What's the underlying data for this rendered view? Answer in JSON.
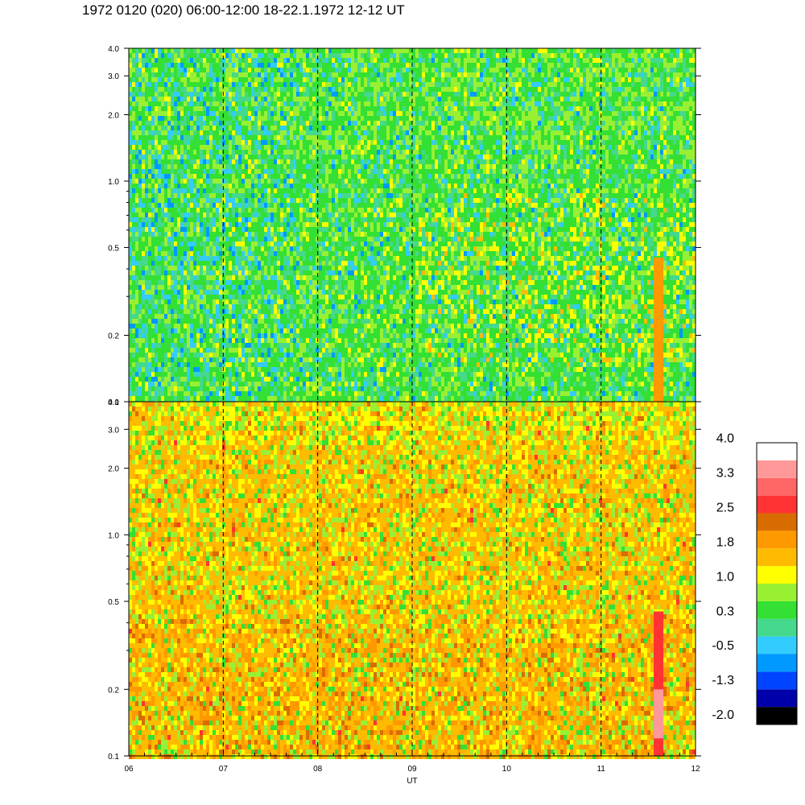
{
  "title": "1972 0120 (020) 06:00-12:00 18-22.1.1972  12-12 UT",
  "chart_data": [
    {
      "type": "heatmap",
      "panel": "upper",
      "x_range": [
        6,
        12
      ],
      "x_ticks": [
        "06",
        "07",
        "08",
        "09",
        "10",
        "11",
        "12"
      ],
      "y_scale": "log",
      "y_range": [
        0.1,
        4.0
      ],
      "y_ticks": [
        {
          "value": 0.1,
          "label": "0.1"
        },
        {
          "value": 0.2,
          "label": "0.2"
        },
        {
          "value": 0.5,
          "label": "0.5"
        },
        {
          "value": 1.0,
          "label": "1.0"
        },
        {
          "value": 2.0,
          "label": "2.0"
        },
        {
          "value": 3.0,
          "label": "3.0"
        },
        {
          "value": 4.0,
          "label": "4.0"
        }
      ],
      "dashed_hour_lines": [
        7,
        8,
        9,
        10,
        11
      ],
      "dominant_levels": [
        "green",
        "light-green",
        "turquoise"
      ]
    },
    {
      "type": "heatmap",
      "panel": "lower",
      "x_range": [
        6,
        12
      ],
      "x_ticks": [
        "06",
        "07",
        "08",
        "09",
        "10",
        "11",
        "12"
      ],
      "xlabel": "UT",
      "y_scale": "log",
      "y_range": [
        0.1,
        4.0
      ],
      "y_ticks": [
        {
          "value": 0.1,
          "label": "0.1"
        },
        {
          "value": 0.2,
          "label": "0.2"
        },
        {
          "value": 0.5,
          "label": "0.5"
        },
        {
          "value": 1.0,
          "label": "1.0"
        },
        {
          "value": 2.0,
          "label": "2.0"
        },
        {
          "value": 3.0,
          "label": "3.0"
        },
        {
          "value": 4.0,
          "label": "4.0"
        }
      ],
      "dashed_hour_lines": [
        7,
        8,
        9,
        10,
        11
      ],
      "dominant_levels": [
        "orange",
        "yellow-orange",
        "light-green"
      ]
    }
  ],
  "colorbar": {
    "colors": [
      "#000000",
      "#0000aa",
      "#0044ff",
      "#0099ff",
      "#33ccff",
      "#44d98c",
      "#33e033",
      "#99f033",
      "#ffff00",
      "#ffbb00",
      "#ff9900",
      "#d96c00",
      "#ff3333",
      "#ff6666",
      "#ff9999",
      "#ffffff"
    ],
    "labels": [
      "-2.0",
      "-1.3",
      "-0.5",
      "0.3",
      "1.0",
      "1.8",
      "2.5",
      "3.3",
      "4.0"
    ]
  }
}
